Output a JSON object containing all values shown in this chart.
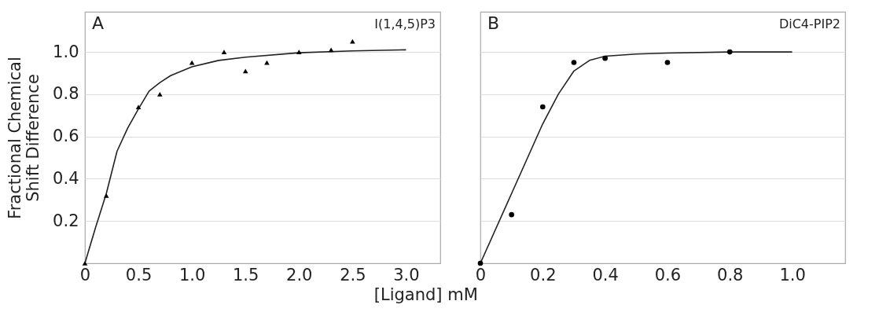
{
  "chart_data": [
    {
      "type": "scatter",
      "xlabel": "[Ligand] mM",
      "ylabel": "Fractional Chemical\nShift Difference",
      "annotations": [
        "A",
        "I(1,4,5)P3"
      ],
      "xlim": [
        0,
        3.32
      ],
      "ylim": [
        0,
        1.19
      ],
      "xticks": [
        0,
        0.5,
        {
          "value": 1,
          "label": "1.0"
        },
        1.5,
        {
          "value": 2,
          "label": "2.0"
        },
        2.5,
        {
          "value": 3,
          "label": "3.0"
        }
      ],
      "yticks": [
        0.2,
        0.4,
        0.6,
        0.8,
        {
          "value": 1,
          "label": "1.0"
        }
      ],
      "grid": "y",
      "series": [
        {
          "marker": "triangle",
          "color": "#000000",
          "x": [
            0,
            0.2,
            0.5,
            0.7,
            1.0,
            1.3,
            1.5,
            1.7,
            2.0,
            2.3,
            2.5
          ],
          "values": [
            0,
            0.32,
            0.74,
            0.8,
            0.95,
            1.0,
            0.91,
            0.95,
            1.0,
            1.01,
            1.05
          ]
        },
        {
          "type": "line",
          "color": "#222222",
          "x": [
            0,
            0.1,
            0.2,
            0.3,
            0.4,
            0.5,
            0.6,
            0.7,
            0.8,
            1.0,
            1.25,
            1.5,
            2.0,
            2.5,
            3.0
          ],
          "values": [
            0,
            0.17,
            0.33,
            0.53,
            0.64,
            0.73,
            0.815,
            0.855,
            0.888,
            0.93,
            0.96,
            0.975,
            0.996,
            1.005,
            1.01
          ]
        }
      ]
    },
    {
      "type": "scatter",
      "annotations": [
        "B",
        "DiC4-PIP2"
      ],
      "tick_labels": "x",
      "xlim": [
        0,
        1.17
      ],
      "ylim": [
        0,
        1.19
      ],
      "xticks": [
        0,
        0.2,
        0.4,
        0.6,
        0.8,
        {
          "value": 1,
          "label": "1.0"
        }
      ],
      "yticks": [
        0.2,
        0.4,
        0.6,
        0.8,
        1.0
      ],
      "grid": "y",
      "series": [
        {
          "marker": "circle",
          "color": "#000000",
          "x": [
            0,
            0.1,
            0.2,
            0.3,
            0.4,
            0.6,
            0.8
          ],
          "values": [
            0,
            0.23,
            0.74,
            0.95,
            0.97,
            0.95,
            1.0
          ]
        },
        {
          "type": "line",
          "color": "#222222",
          "x": [
            0,
            0.1,
            0.2,
            0.25,
            0.3,
            0.35,
            0.4,
            0.5,
            0.6,
            0.8,
            1.0
          ],
          "values": [
            0,
            0.33,
            0.66,
            0.8,
            0.91,
            0.96,
            0.98,
            0.99,
            0.995,
            1.0,
            1.0
          ]
        }
      ]
    }
  ]
}
